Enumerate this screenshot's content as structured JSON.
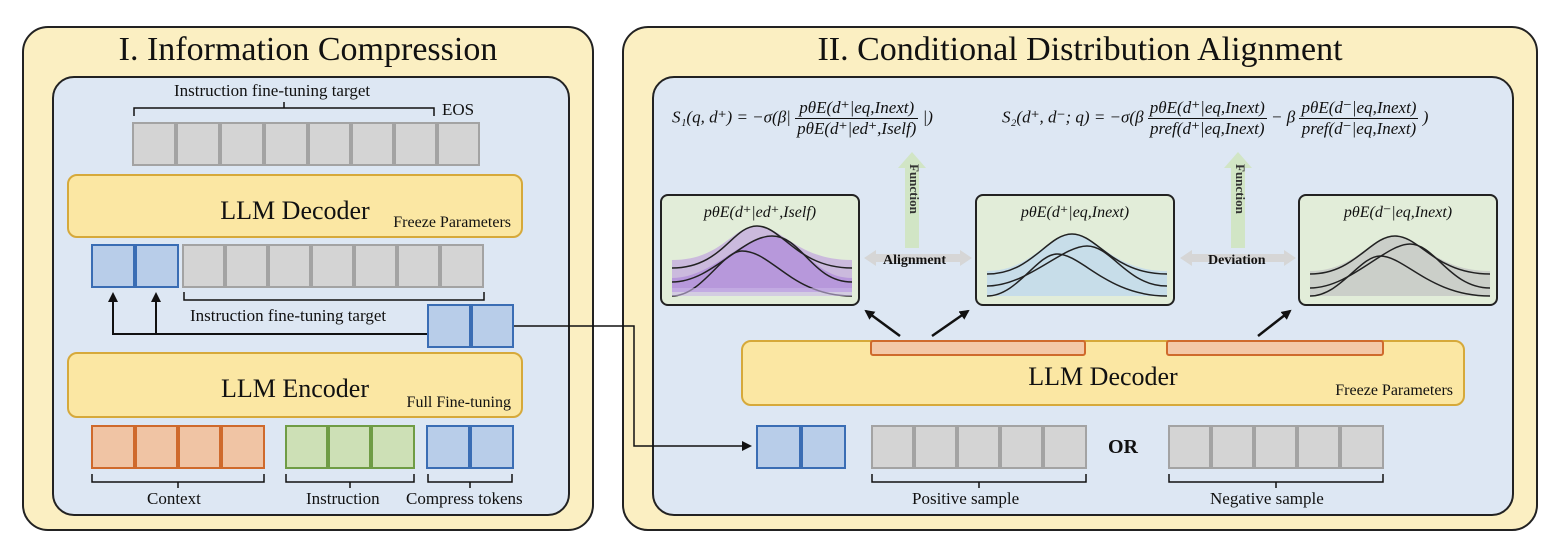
{
  "panel1": {
    "title": "I. Information Compression",
    "top_target_label": "Instruction fine-tuning target",
    "eos_label": "EOS",
    "decoder": {
      "title": "LLM Decoder",
      "subtitle": "Freeze Parameters"
    },
    "mid_target_label": "Instruction fine-tuning target",
    "encoder": {
      "title": "LLM Encoder",
      "subtitle": "Full Fine-tuning"
    },
    "bottom_labels": {
      "context": "Context",
      "instruction": "Instruction",
      "compress": "Compress tokens"
    }
  },
  "panel2": {
    "title": "II. Conditional Distribution Alignment",
    "formula1": {
      "lhs": "S₁(q, d⁺) = −σ(β|",
      "num": "pθE(d⁺|eq,Inext)",
      "den": "pθE(d⁺|ed⁺,Iself)",
      "rhs": "|)"
    },
    "formula2": {
      "lhs": "S₂(d⁺, d⁻; q) = −σ(β",
      "num1": "pθE(d⁺|eq,Inext)",
      "den1": "pref(d⁺|eq,Inext)",
      "mid": "− β",
      "num2": "pθE(d⁻|eq,Inext)",
      "den2": "pref(d⁻|eq,Inext)",
      "rhs": ")"
    },
    "function_label_1": "Function",
    "function_label_2": "Function",
    "dist1": "pθE(d⁺|ed⁺,Iself)",
    "dist2": "pθE(d⁺|eq,Inext)",
    "dist3": "pθE(d⁻|eq,Inext)",
    "alignment_label": "Alignment",
    "deviation_label": "Deviation",
    "decoder": {
      "title": "LLM Decoder",
      "subtitle": "Freeze Parameters"
    },
    "or_label": "OR",
    "positive_label": "Positive sample",
    "negative_label": "Negative sample"
  },
  "colors": {
    "panel_bg": "#fbefc2",
    "inner_bg": "#dde7f3",
    "llm_bg": "#fbe7a3",
    "token_gray": "#d4d4d4",
    "token_blue": "#b8cde9",
    "token_orange": "#f0c4a4",
    "token_green": "#cde0b6",
    "dist_bg": "#e2edd9",
    "purple": "#b88fe0",
    "light_blue": "#bcd5f0",
    "gray_fill": "#c2c2c2"
  }
}
